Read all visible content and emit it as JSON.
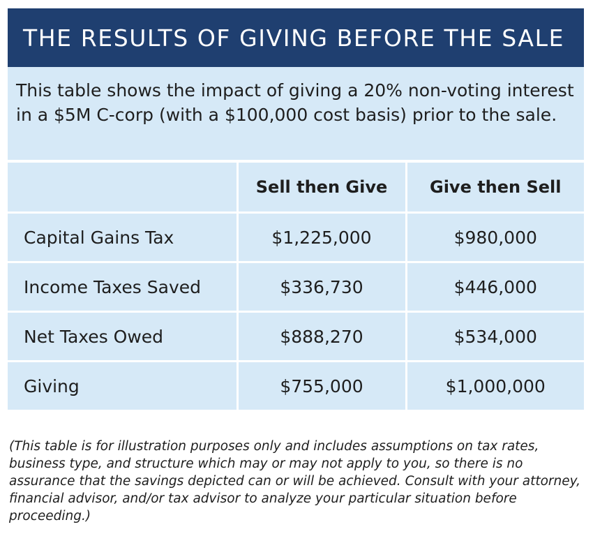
{
  "title": "THE RESULTS OF GIVING BEFORE THE SALE",
  "intro": "This table shows the impact of giving a 20% non-voting interest in a $5M C-corp (with a $100,000 cost basis) prior to the sale.",
  "table": {
    "headers": [
      "",
      "Sell then Give",
      "Give then Sell"
    ],
    "rows": [
      {
        "label": "Capital Gains Tax",
        "sell_then_give": "$1,225,000",
        "give_then_sell": "$980,000"
      },
      {
        "label": "Income Taxes Saved",
        "sell_then_give": "$336,730",
        "give_then_sell": "$446,000"
      },
      {
        "label": "Net Taxes Owed",
        "sell_then_give": "$888,270",
        "give_then_sell": "$534,000"
      },
      {
        "label": "Giving",
        "sell_then_give": "$755,000",
        "give_then_sell": "$1,000,000"
      }
    ]
  },
  "disclaimer": "(This table is for illustration purposes only and includes assumptions on tax rates, business type, and structure which may or may not apply to you, so there is no assurance that the savings depicted can or will be achieved. Consult with your attorney, financial advisor, and/or tax advisor to analyze your particular situation before proceeding.)",
  "colors": {
    "header_navy": "#1f3f70",
    "cell_light_blue": "#d6e9f7",
    "text": "#1e1e1e"
  }
}
